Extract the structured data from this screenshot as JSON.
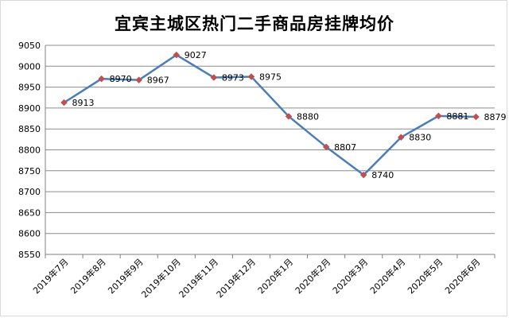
{
  "chart_data": {
    "type": "line",
    "title": "宜宾主城区热门二手商品房挂牌均价",
    "categories": [
      "2019年7月",
      "2019年8月",
      "2019年9月",
      "2019年10月",
      "2019年11月",
      "2019年12月",
      "2020年1月",
      "2020年2月",
      "2020年3月",
      "2020年4月",
      "2020年5月",
      "2020年6月"
    ],
    "series": [
      {
        "values": [
          8913,
          8970,
          8967,
          9027,
          8973,
          8975,
          8880,
          8807,
          8740,
          8830,
          8881,
          8879
        ]
      }
    ],
    "ylim": [
      8550,
      9050
    ],
    "yticks": [
      8550,
      8600,
      8650,
      8700,
      8750,
      8800,
      8850,
      8900,
      8950,
      9000,
      9050
    ],
    "xlabel": "",
    "ylabel": "",
    "grid": true,
    "colors": {
      "line": "#4a7ebb",
      "marker": "#c0504d",
      "grid": "#8c8c8c"
    }
  }
}
